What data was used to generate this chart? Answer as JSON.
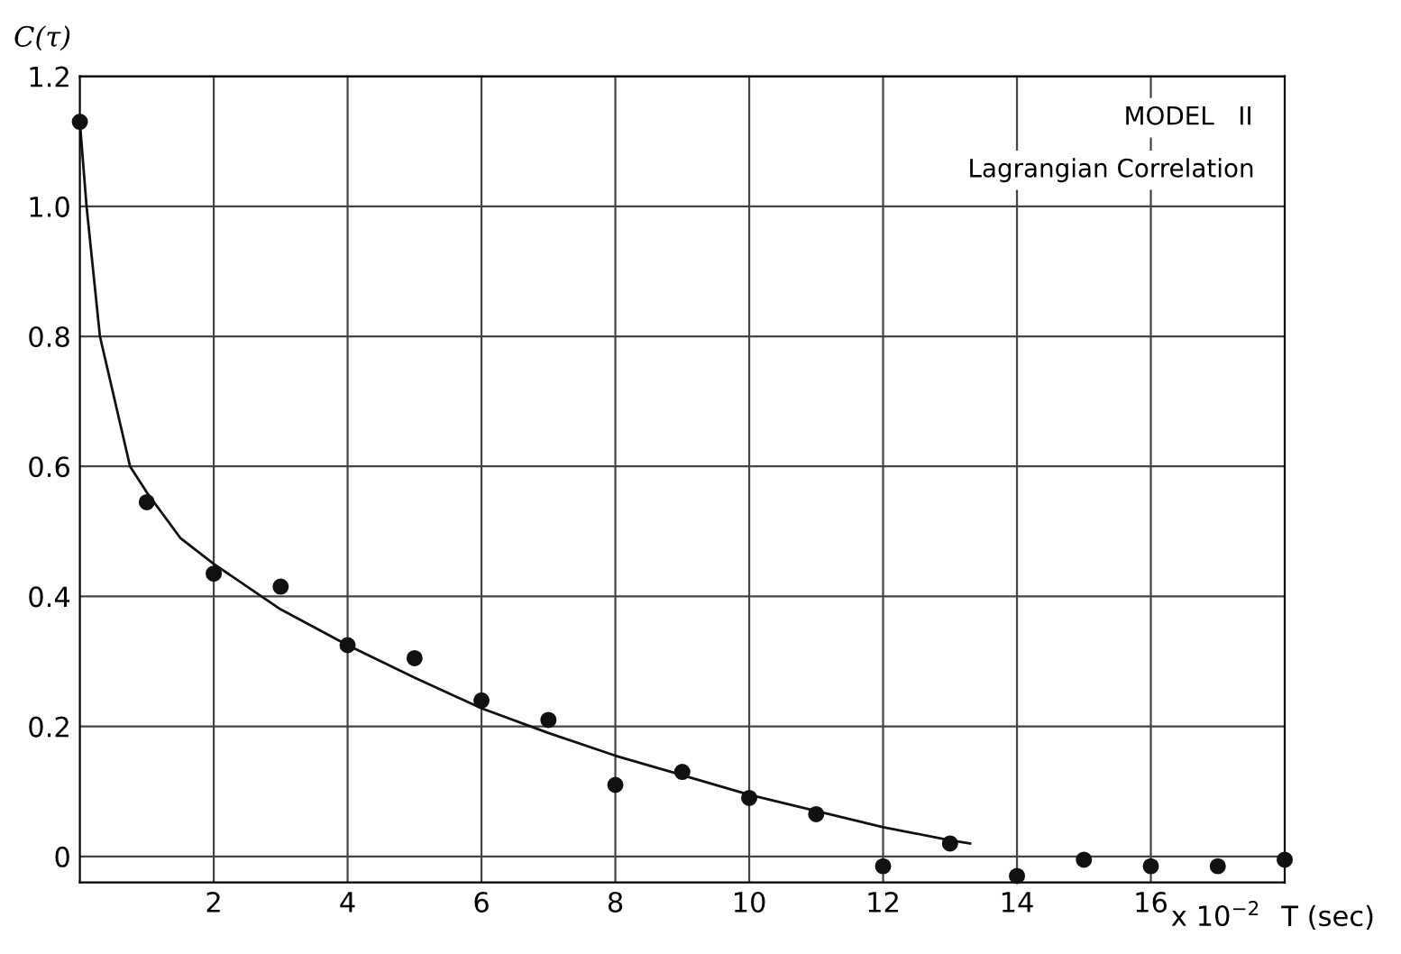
{
  "chart_data": {
    "type": "scatter",
    "ylabel": "C(τ)",
    "xlabel": "T (sec)",
    "annotations": [
      "MODEL   II",
      "Lagrangian Correlation",
      "x 10$^{−2}$"
    ],
    "series": [
      {
        "color": "#111111",
        "marker": "circle",
        "x": [
          0,
          1,
          2,
          3,
          4,
          5,
          6,
          7,
          8,
          9,
          10,
          11,
          12,
          13,
          14,
          15,
          16,
          17,
          18
        ],
        "values": [
          1.13,
          0.545,
          0.435,
          0.415,
          0.325,
          0.305,
          0.24,
          0.21,
          0.11,
          0.13,
          0.09,
          0.065,
          -0.015,
          0.02,
          -0.03,
          -0.005,
          -0.015,
          -0.015,
          -0.005
        ]
      },
      {
        "type": "line",
        "color": "#111111",
        "x": [
          0,
          0.1,
          0.3,
          0.75,
          1,
          1.5,
          2,
          3,
          4,
          5,
          6,
          7,
          8,
          9,
          10,
          11,
          12,
          13,
          13.3
        ],
        "values": [
          1.13,
          1.0,
          0.8,
          0.6,
          0.56,
          0.49,
          0.45,
          0.38,
          0.325,
          0.275,
          0.228,
          0.19,
          0.155,
          0.125,
          0.095,
          0.07,
          0.045,
          0.025,
          0.02
        ]
      }
    ],
    "xlim": [
      0,
      18
    ],
    "ylim": [
      -0.04,
      1.2
    ],
    "xticks": [
      2,
      4,
      6,
      8,
      10,
      12,
      14,
      16
    ],
    "yticks": [
      0,
      0.2,
      0.4,
      0.6,
      0.8,
      {
        "value": 1,
        "label": "1.0"
      },
      1.2
    ],
    "grid": true
  }
}
